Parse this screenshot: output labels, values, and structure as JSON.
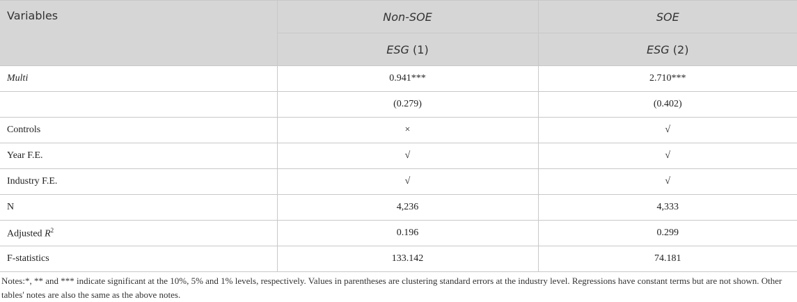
{
  "header": {
    "corner": "Variables",
    "groups": [
      "Non-SOE",
      "SOE"
    ],
    "models": [
      {
        "var": "ESG",
        "num": "(1)"
      },
      {
        "var": "ESG",
        "num": "(2)"
      }
    ]
  },
  "rows": [
    {
      "label": "Multi",
      "italic": true,
      "values": [
        "0.941***",
        "2.710***"
      ]
    },
    {
      "values": [
        "(0.279)",
        "(0.402)"
      ]
    },
    {
      "label": "Controls",
      "values": [
        "×",
        "√"
      ]
    },
    {
      "label": "Year F.E.",
      "values": [
        "√",
        "√"
      ]
    },
    {
      "label": "Industry F.E.",
      "values": [
        "√",
        "√"
      ]
    },
    {
      "label": "N",
      "values": [
        "4,236",
        "4,333"
      ]
    },
    {
      "label": "Adjusted",
      "label_var": "R",
      "label_sup": "2",
      "values": [
        "0.196",
        "0.299"
      ]
    },
    {
      "label": "F-statistics",
      "values": [
        "133.142",
        "74.181"
      ]
    }
  ],
  "notes": "Notes:*, ** and *** indicate significant at the 10%, 5% and 1% levels, respectively. Values in parentheses are clustering standard errors at the industry level. Regressions have constant terms but are not shown. Other tables' notes are also the same as the above notes."
}
